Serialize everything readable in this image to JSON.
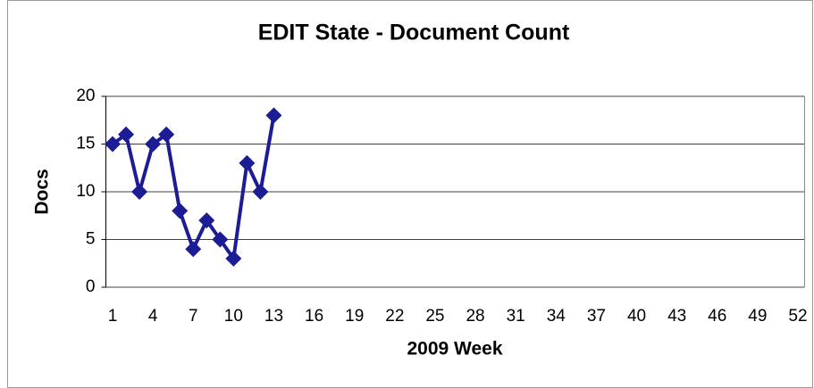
{
  "chart_data": {
    "type": "line",
    "title": "EDIT State - Document Count",
    "x_label": "2009 Week",
    "y_label": "Docs",
    "categories": [
      1,
      null,
      null,
      4,
      null,
      null,
      7,
      null,
      null,
      10,
      null,
      null,
      13,
      null,
      null,
      16,
      null,
      null,
      19,
      null,
      null,
      22,
      null,
      null,
      25,
      null,
      null,
      28,
      null,
      null,
      31,
      null,
      null,
      34,
      null,
      null,
      37,
      null,
      null,
      40,
      null,
      null,
      43,
      null,
      null,
      46,
      null,
      null,
      49,
      null,
      null,
      52
    ],
    "series": [
      {
        "name": "EDIT",
        "color": "#1c1c94",
        "values": [
          15,
          16,
          10,
          15,
          16,
          8,
          4,
          7,
          5,
          3,
          13,
          10,
          18,
          null,
          null,
          null,
          null,
          null,
          null,
          null,
          null,
          null,
          null,
          null,
          null,
          null,
          null,
          null,
          null,
          null,
          null,
          null,
          null,
          null,
          null,
          null,
          null,
          null,
          null,
          null,
          null,
          null,
          null,
          null,
          null,
          null,
          null,
          null,
          null,
          null,
          null,
          null
        ]
      }
    ],
    "ylim": [
      0,
      20
    ],
    "yticks": [
      0,
      5,
      10,
      15,
      20
    ],
    "grid": true
  }
}
